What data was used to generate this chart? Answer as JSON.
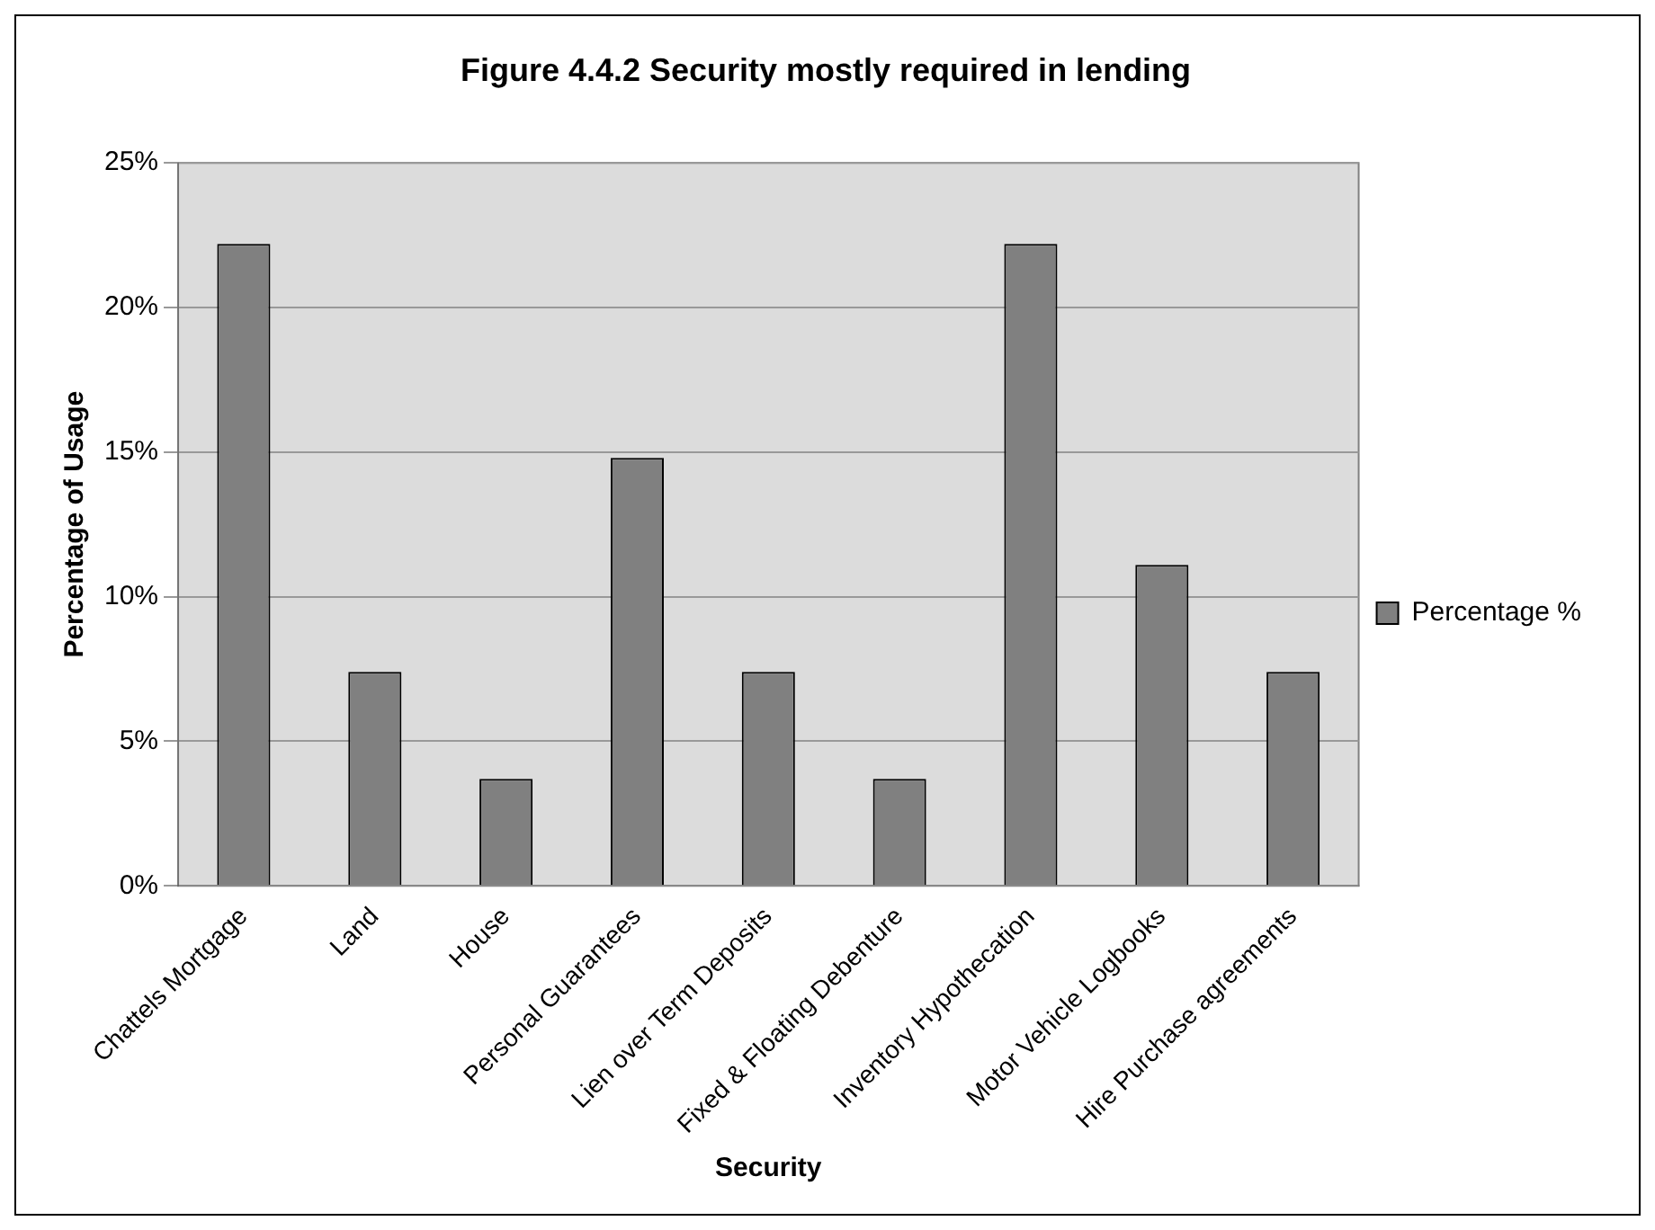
{
  "chart_data": {
    "type": "bar",
    "title": "Figure 4.4.2 Security mostly required in lending",
    "xlabel": "Security",
    "ylabel": "Percentage of Usage",
    "categories": [
      "Chattels Mortgage",
      "Land",
      "House",
      "Personal Guarantees",
      "Lien over Term Deposits",
      "Fixed & Floating Debenture",
      "Inventory Hypothecation",
      "Motor Vehicle Logbooks",
      "Hire Purchase agreements"
    ],
    "series": [
      {
        "name": "Percentage %",
        "color": "#808080",
        "values": [
          22.2,
          7.4,
          3.7,
          14.8,
          7.4,
          3.7,
          22.2,
          11.1,
          7.4
        ]
      }
    ],
    "ylim": [
      0,
      25
    ],
    "yticks": [
      {
        "value": 0,
        "label": "0%"
      },
      {
        "value": 5,
        "label": "5%"
      },
      {
        "value": 10,
        "label": "10%"
      },
      {
        "value": 15,
        "label": "15%"
      },
      {
        "value": 20,
        "label": "20%"
      },
      {
        "value": 25,
        "label": "25%"
      }
    ],
    "grid": "y",
    "legend": "right"
  }
}
